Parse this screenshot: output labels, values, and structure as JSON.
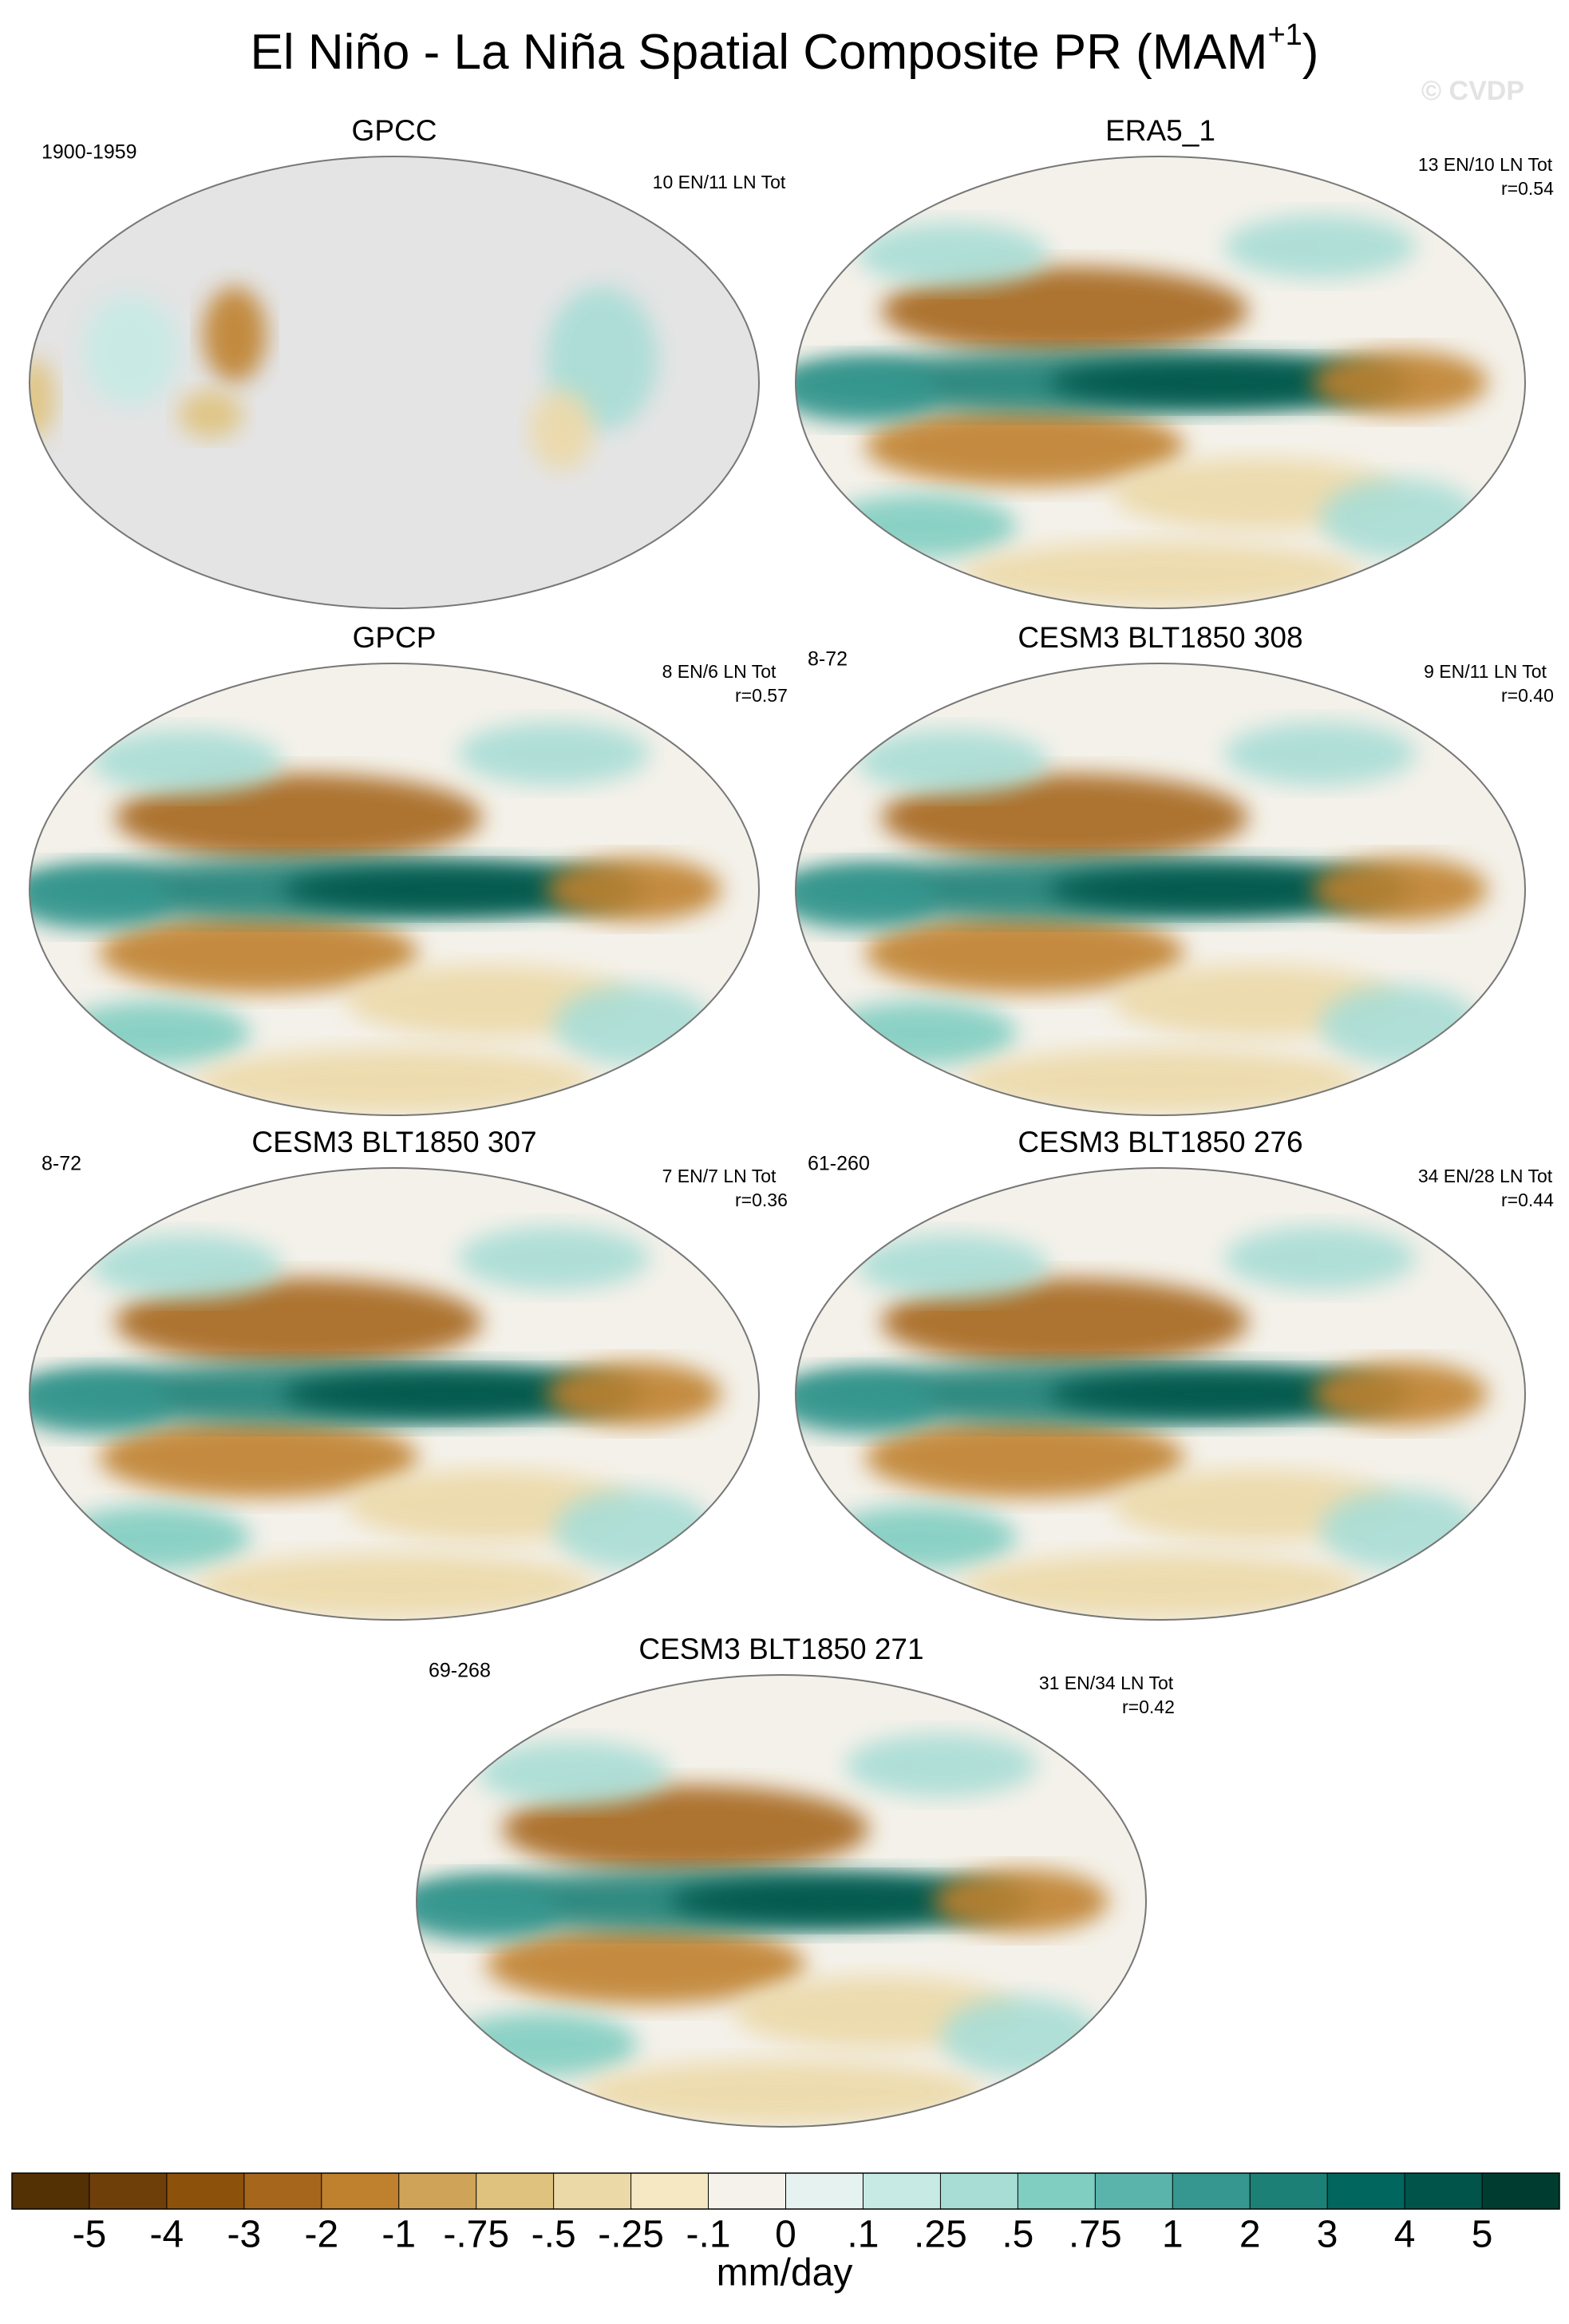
{
  "title": {
    "text": "El Niño - La Niña Spatial Composite PR (MAM",
    "superscript": "+1",
    "close": ")"
  },
  "watermark": "© CVDP",
  "panels": [
    {
      "name": "GPCC",
      "left_label": "1900-1959",
      "right_labels": [
        "10 EN/11 LN Tot"
      ]
    },
    {
      "name": "ERA5_1",
      "right_labels": [
        "13 EN/10 LN Tot",
        "r=0.54"
      ]
    },
    {
      "name": "GPCP",
      "right_labels": [
        "8 EN/6 LN Tot",
        "r=0.57"
      ]
    },
    {
      "name": "CESM3 BLT1850 308",
      "left_label": "8-72",
      "right_labels": [
        "9 EN/11 LN Tot",
        "r=0.40"
      ]
    },
    {
      "name": "CESM3 BLT1850 307",
      "left_label": "8-72",
      "right_labels": [
        "7 EN/7 LN Tot",
        "r=0.36"
      ]
    },
    {
      "name": "CESM3 BLT1850 276",
      "left_label": "61-260",
      "right_labels": [
        "34 EN/28 LN Tot",
        "r=0.44"
      ]
    },
    {
      "name": "CESM3 BLT1850 271",
      "left_label": "69-268",
      "right_labels": [
        "31 EN/34 LN Tot",
        "r=0.42"
      ]
    }
  ],
  "colorbar": {
    "unit": "mm/day",
    "levels": [
      -5,
      -4,
      -3,
      -2,
      -1,
      {
        "value": -0.75,
        "label": "-.75"
      },
      {
        "value": -0.5,
        "label": "-.5"
      },
      {
        "value": -0.25,
        "label": "-.25"
      },
      {
        "value": -0.1,
        "label": "-.1"
      },
      0,
      {
        "value": 0.1,
        "label": ".1"
      },
      {
        "value": 0.25,
        "label": ".25"
      },
      {
        "value": 0.5,
        "label": ".5"
      },
      {
        "value": 0.75,
        "label": ".75"
      },
      1,
      2,
      3,
      4,
      5
    ],
    "colors": [
      "#543005",
      "#6f3f09",
      "#8c510a",
      "#a6661c",
      "#bf812d",
      "#d0a458",
      "#dfc27d",
      "#ecd9a8",
      "#f6e8c3",
      "#f5f2ec",
      "#e6f2ef",
      "#c7eae5",
      "#a8ddd5",
      "#80cdc1",
      "#5ab4ac",
      "#35978f",
      "#1d8076",
      "#01665e",
      "#00544a",
      "#003c30"
    ]
  }
}
